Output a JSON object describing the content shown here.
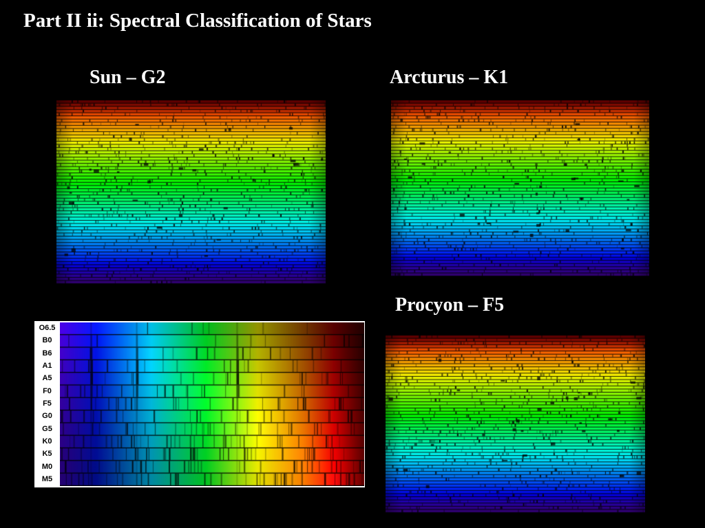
{
  "title": "Part II ii: Spectral Classification of Stars",
  "panels": {
    "sun": {
      "caption": "Sun – G2",
      "dark_lines": [
        "dark-line"
      ]
    },
    "arcturus": {
      "caption": "Arcturus – K1"
    },
    "procyon": {
      "caption": "Procyon – F5"
    }
  },
  "sequence": {
    "classes": [
      "O6.5",
      "B0",
      "B6",
      "A1",
      "A5",
      "F0",
      "F5",
      "G0",
      "G5",
      "K0",
      "K5",
      "M0",
      "M5"
    ]
  },
  "colors": {
    "background": "#000000",
    "text": "#ffffff"
  }
}
